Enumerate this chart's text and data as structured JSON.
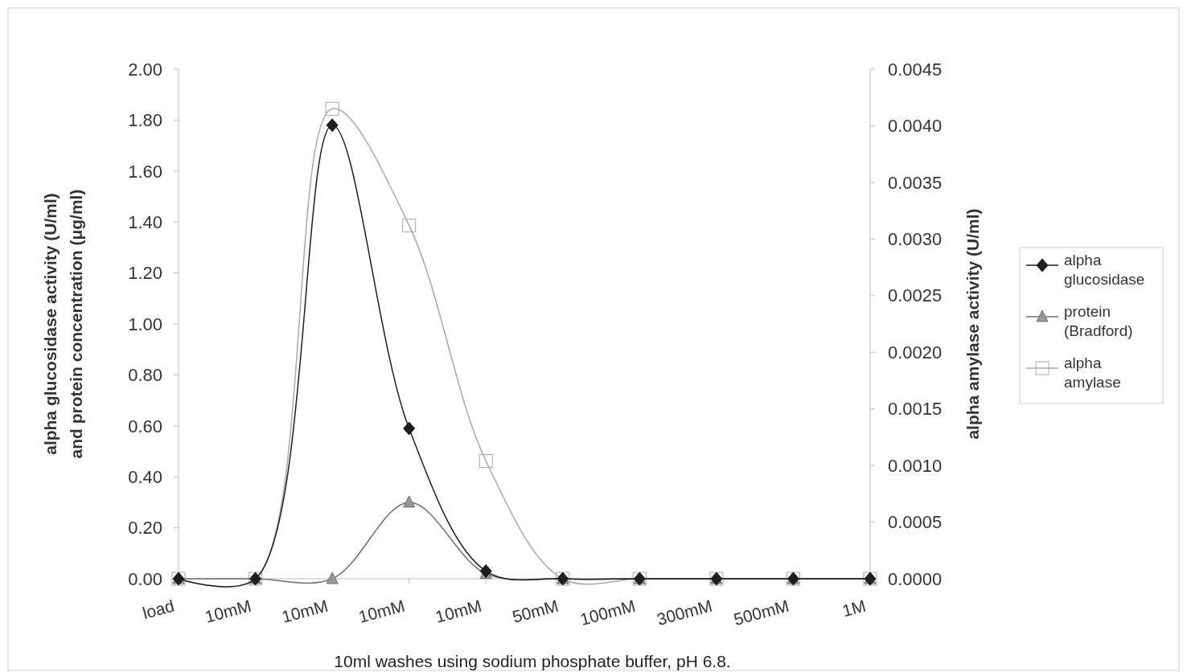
{
  "chart_data": {
    "type": "line",
    "xlabel": "10ml washes using sodium phosphate buffer, pH 6.8.",
    "ylabel": "alpha glucosidase activity (U/ml) and protein concentration (μg/ml)",
    "y2label": "alpha amylase activity (U/ml)",
    "categories": [
      "load",
      "10mM",
      "10mM",
      "10mM",
      "10mM",
      "50mM",
      "100mM",
      "300mM",
      "500mM",
      "1M"
    ],
    "series": [
      {
        "name": "alpha glucosidase",
        "color": "#1e1e1e",
        "marker": "diamond",
        "values": [
          0,
          0,
          1.78,
          0.59,
          0.03,
          0,
          0,
          0,
          0,
          0
        ]
      },
      {
        "name": "protein (Bradford)",
        "color": "#6e6e6e",
        "marker": "triangle",
        "values": [
          0,
          0,
          0,
          0.3,
          0.02,
          0,
          0,
          0,
          0,
          0
        ]
      },
      {
        "name": "alpha amylase",
        "color": "#a8a8a8",
        "marker": "square",
        "axis": "y2",
        "values": [
          0,
          0,
          0.00415,
          0.00312,
          0.00104,
          0,
          0,
          0,
          0,
          0
        ]
      }
    ],
    "ylim": [
      0,
      2
    ],
    "yticks": [
      {
        "value": 0,
        "label": "0.00"
      },
      {
        "value": 0.2,
        "label": "0.20"
      },
      {
        "value": 0.4,
        "label": "0.40"
      },
      {
        "value": 0.6,
        "label": "0.60"
      },
      {
        "value": 0.8,
        "label": "0.80"
      },
      {
        "value": 1,
        "label": "1.00"
      },
      {
        "value": 1.2,
        "label": "1.20"
      },
      {
        "value": 1.4,
        "label": "1.40"
      },
      {
        "value": 1.6,
        "label": "1.60"
      },
      {
        "value": 1.8,
        "label": "1.80"
      },
      {
        "value": 2,
        "label": "2.00"
      }
    ],
    "y2lim": [
      0,
      0.0045
    ],
    "y2ticks": [
      {
        "value": 0,
        "label": "0.0000"
      },
      {
        "value": 0.0005,
        "label": "0.0005"
      },
      {
        "value": 0.001,
        "label": "0.0010"
      },
      {
        "value": 0.0015,
        "label": "0.0015"
      },
      {
        "value": 0.002,
        "label": "0.0020"
      },
      {
        "value": 0.0025,
        "label": "0.0025"
      },
      {
        "value": 0.003,
        "label": "0.0030"
      },
      {
        "value": 0.0035,
        "label": "0.0035"
      },
      {
        "value": 0.004,
        "label": "0.0040"
      },
      {
        "value": 0.0045,
        "label": "0.0045"
      }
    ],
    "legend": "right",
    "grid": false
  }
}
